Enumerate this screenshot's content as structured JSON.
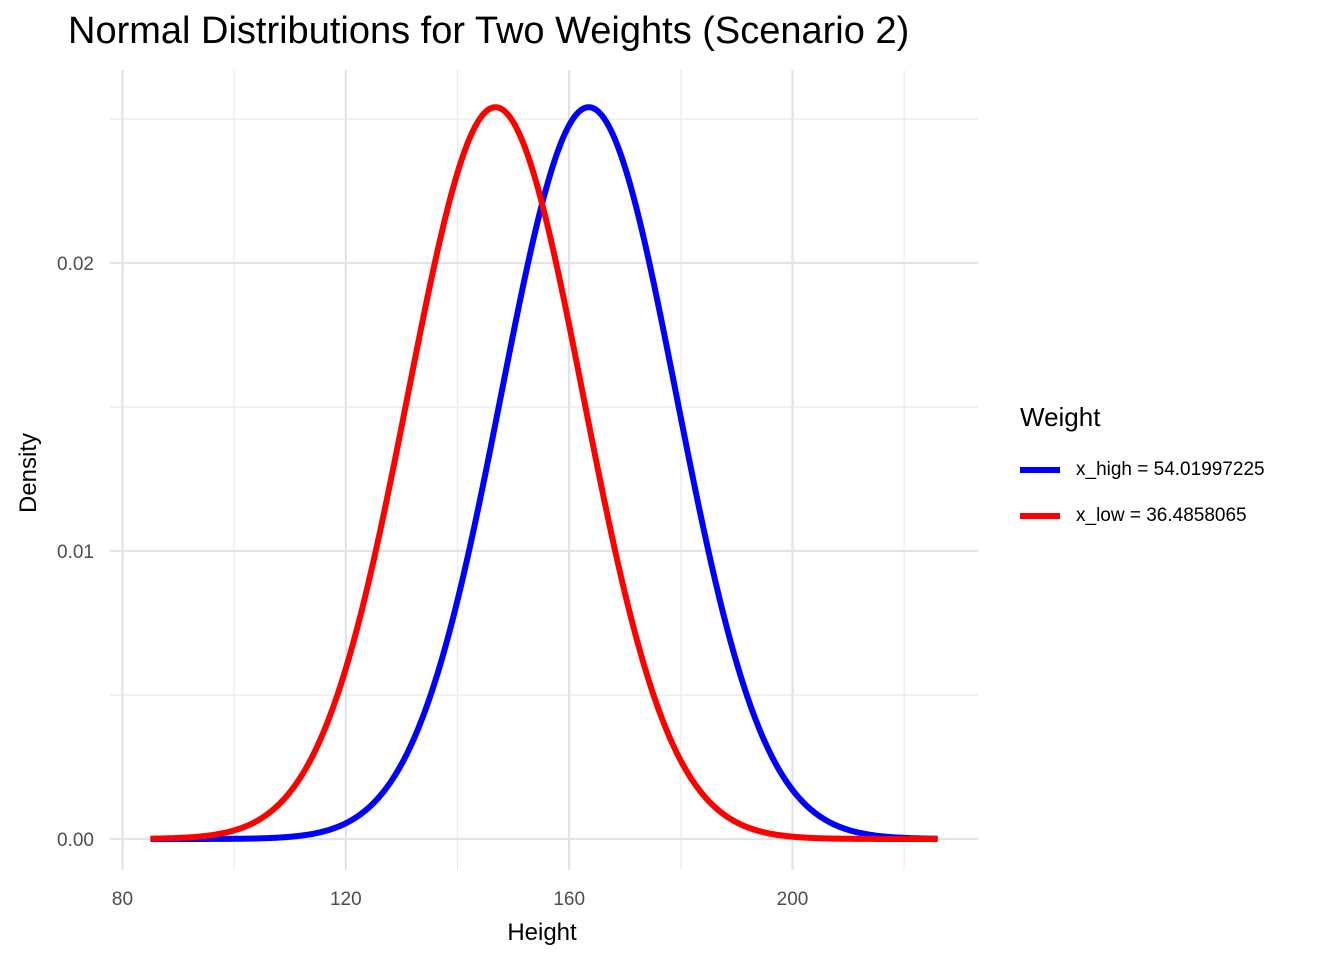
{
  "chart_data": {
    "type": "line",
    "title": "Normal Distributions for Two Weights (Scenario 2)",
    "xlabel": "Height",
    "ylabel": "Density",
    "xlim": [
      85,
      226
    ],
    "ylim": [
      0,
      0.0255
    ],
    "x_ticks": [
      80,
      120,
      160,
      200
    ],
    "y_ticks": [
      0.0,
      0.01,
      0.02
    ],
    "y_tick_labels": [
      "0.00",
      "0.01",
      "0.02"
    ],
    "x_minor_ticks": [
      100,
      140,
      180,
      220
    ],
    "y_minor_ticks": [
      0.005,
      0.015,
      0.025
    ],
    "grid": true,
    "legend": {
      "title": "Weight",
      "position": "right"
    },
    "series": [
      {
        "name": "x_high = 54.01997225",
        "color": "#0000FF",
        "distribution": "normal",
        "mean": 163.5,
        "sd": 15.7,
        "x_range": [
          85,
          226
        ]
      },
      {
        "name": "x_low = 36.4858065",
        "color": "#FF0000",
        "distribution": "normal",
        "mean": 146.8,
        "sd": 15.7,
        "x_range": [
          85,
          226
        ]
      }
    ]
  }
}
